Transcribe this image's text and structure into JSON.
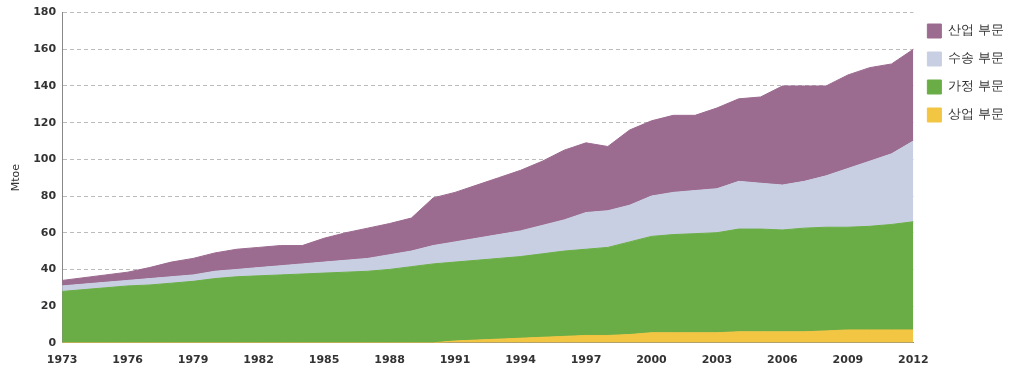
{
  "chart_data": {
    "type": "area",
    "stacked": true,
    "y_label": "Mtoe",
    "categories": [
      "1973",
      null,
      null,
      "1976",
      null,
      null,
      "1979",
      null,
      null,
      "1982",
      null,
      null,
      "1985",
      null,
      null,
      "1988",
      null,
      null,
      "1991",
      null,
      null,
      "1994",
      null,
      null,
      "1997",
      null,
      null,
      "2000",
      null,
      null,
      "2003",
      null,
      null,
      "2006",
      null,
      null,
      "2009",
      null,
      null,
      "2012"
    ],
    "series": [
      {
        "name": "상업 부문",
        "color": "#f2c543",
        "values": [
          0,
          0,
          0,
          0,
          0,
          0,
          0,
          0,
          0,
          0,
          0,
          0,
          0,
          0,
          0,
          0,
          0,
          0,
          1,
          1.5,
          2,
          2.5,
          3,
          3.5,
          4,
          4,
          4.5,
          5.5,
          5.5,
          5.5,
          5.5,
          6,
          6,
          6,
          6,
          6.5,
          7,
          7,
          7,
          7
        ]
      },
      {
        "name": "가정 부문",
        "color": "#6aad46",
        "values": [
          28,
          29,
          30,
          31,
          31.5,
          32.5,
          33.5,
          35,
          36,
          36.5,
          37,
          37.5,
          38,
          38.5,
          39,
          40,
          41.5,
          43,
          43,
          43.5,
          44,
          44.5,
          45.5,
          46.5,
          47,
          48,
          50.5,
          52.5,
          53.5,
          54,
          54.5,
          56,
          56,
          55.5,
          56.5,
          56.5,
          56,
          56.5,
          57.5,
          59
        ]
      },
      {
        "name": "수송 부문",
        "color": "#c8cfe2",
        "values": [
          3,
          3,
          3,
          3,
          3.5,
          3.5,
          3.5,
          4,
          4,
          4.5,
          5,
          5.5,
          6,
          6.5,
          7,
          8,
          8.5,
          10,
          11,
          12,
          13,
          14,
          15.5,
          17,
          20,
          20,
          20,
          22,
          23,
          23.5,
          24,
          26,
          25,
          24.5,
          25.5,
          28,
          32,
          35.5,
          38.5,
          44
        ]
      },
      {
        "name": "산업 부문",
        "color": "#9c6b90",
        "values": [
          3,
          3.5,
          4,
          4.5,
          6,
          8,
          9,
          10,
          11,
          11,
          11,
          10,
          13,
          15,
          16.5,
          17,
          18,
          26,
          27,
          29,
          31,
          33,
          35,
          38,
          38,
          35,
          41,
          41,
          42,
          41,
          44,
          45,
          47,
          54,
          52,
          49,
          51,
          51,
          49,
          50
        ]
      }
    ],
    "ylim": [
      0,
      180
    ],
    "yticks": [
      0,
      20,
      40,
      60,
      80,
      100,
      120,
      140,
      160,
      180
    ],
    "grid": true,
    "legend": "right"
  }
}
